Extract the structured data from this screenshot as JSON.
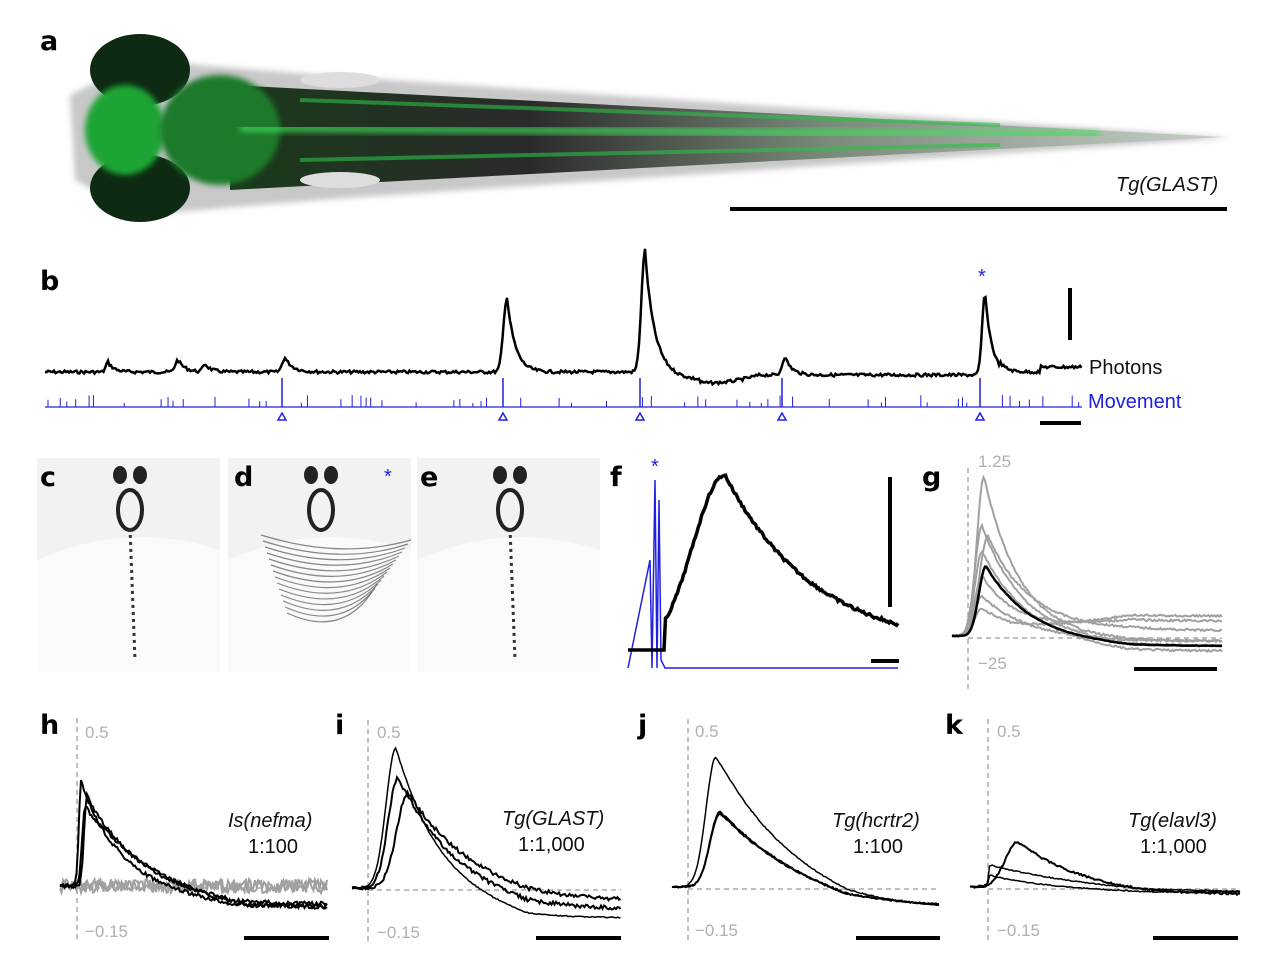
{
  "panels": {
    "a": {
      "label": "a",
      "line": "Tg(GLAST)"
    },
    "b": {
      "label": "b",
      "photons": "Photons",
      "movement": "Movement",
      "star": "*"
    },
    "c": {
      "label": "c"
    },
    "d": {
      "label": "d",
      "star": "*"
    },
    "e": {
      "label": "e"
    },
    "f": {
      "label": "f",
      "star": "*"
    },
    "g": {
      "label": "g",
      "ymax": "1.25",
      "ymin": "−25"
    },
    "h": {
      "label": "h",
      "ymax": "0.5",
      "ymin": "−0.15",
      "line": "Is(nefma)",
      "ratio": "1:100"
    },
    "i": {
      "label": "i",
      "ymax": "0.5",
      "ymin": "−0.15",
      "line": "Tg(GLAST)",
      "ratio": "1:1,000"
    },
    "j": {
      "label": "j",
      "ymax": "0.5",
      "ymin": "−0.15",
      "line": "Tg(hcrtr2)",
      "ratio": "1:100"
    },
    "k": {
      "label": "k",
      "ymax": "0.5",
      "ymin": "−0.15",
      "line": "Tg(elavl3)",
      "ratio": "1:1,000"
    }
  },
  "colors": {
    "movement": "#2020e0",
    "photons": "#000000",
    "gfp": "#22c83a",
    "control": "#a0a0a0"
  }
}
